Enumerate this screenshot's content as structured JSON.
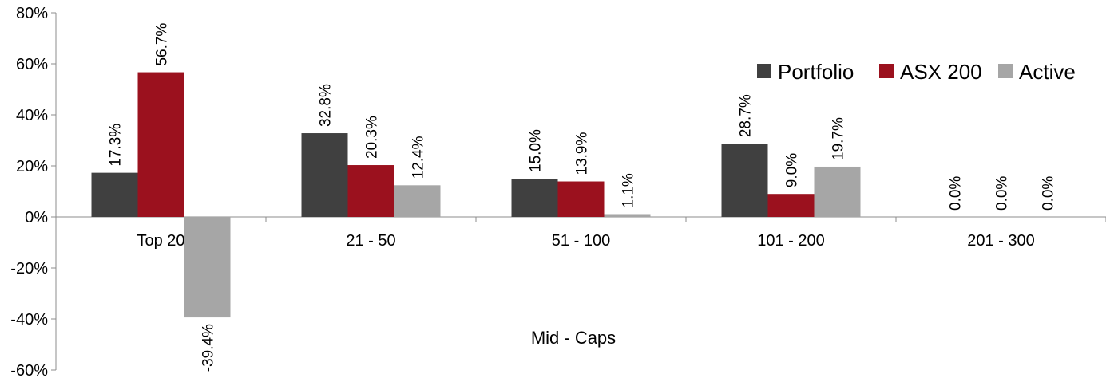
{
  "chart_data": {
    "type": "bar",
    "categories": [
      "Top 20",
      "21 - 50",
      "51 - 100",
      "101 - 200",
      "201 - 300"
    ],
    "series": [
      {
        "name": "Portfolio",
        "color": "#404040",
        "values": [
          17.3,
          32.8,
          15.0,
          28.7,
          0.0
        ],
        "labels": [
          "17.3%",
          "32.8%",
          "15.0%",
          "28.7%",
          "0.0%"
        ]
      },
      {
        "name": "ASX 200",
        "color": "#9b111e",
        "values": [
          56.7,
          20.3,
          13.9,
          9.0,
          0.0
        ],
        "labels": [
          "56.7%",
          "20.3%",
          "13.9%",
          "9.0%",
          "0.0%"
        ]
      },
      {
        "name": "Active",
        "color": "#a6a6a6",
        "values": [
          -39.4,
          12.4,
          1.1,
          19.7,
          0.0
        ],
        "labels": [
          "-39.4%",
          "12.4%",
          "1.1%",
          "19.7%",
          "0.0%"
        ]
      }
    ],
    "ylim": [
      -60,
      80
    ],
    "yticks": [
      {
        "value": 80,
        "label": "80%"
      },
      {
        "value": 60,
        "label": "60%"
      },
      {
        "value": 40,
        "label": "40%"
      },
      {
        "value": 20,
        "label": "20%"
      },
      {
        "value": 0,
        "label": "0%"
      },
      {
        "value": -20,
        "label": "-20%"
      },
      {
        "value": -40,
        "label": "-40%"
      },
      {
        "value": -60,
        "label": "-60%"
      }
    ],
    "annotation": "Mid - Caps",
    "legend_position": "top-right",
    "grid": false
  }
}
